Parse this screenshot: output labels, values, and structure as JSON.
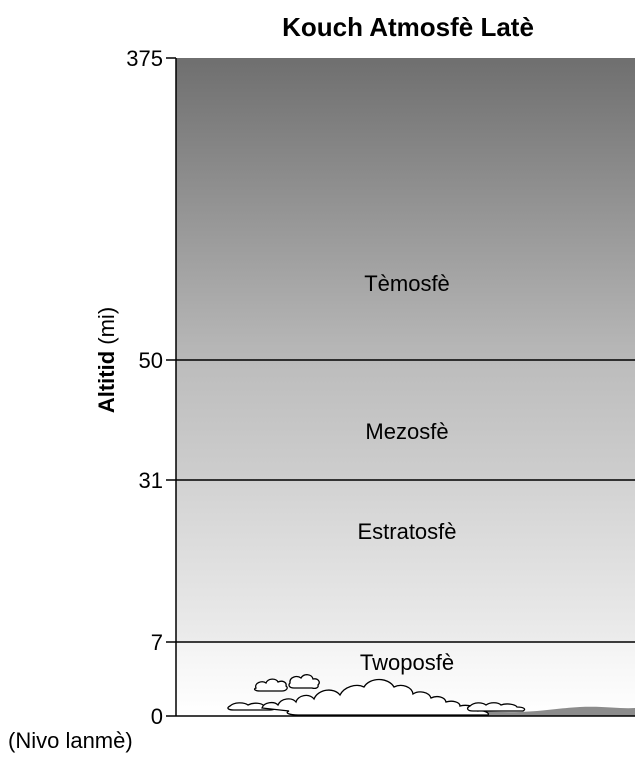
{
  "title": "Kouch Atmosfè Latè",
  "axis": {
    "label_bold": "Altitid",
    "label_unit": " (mi)",
    "ground_note": "(Nivo lanmè)"
  },
  "ticks": [
    "375",
    "50",
    "31",
    "7",
    "0"
  ],
  "layers": [
    {
      "name": "Tèmosfè"
    },
    {
      "name": "Mezosfè"
    },
    {
      "name": "Estratosfè"
    },
    {
      "name": "Twoposfè"
    }
  ],
  "colors": {
    "thermosphere_top": "#6f6f6f",
    "thermosphere_bottom": "#b9b9b9",
    "mesosphere_top": "#bcbcbc",
    "mesosphere_bottom": "#cecece",
    "stratosphere_top": "#d2d2d2",
    "stratosphere_bottom": "#ececec",
    "troposphere_top": "#f3f3f3",
    "troposphere_bottom": "#ffffff",
    "ground": "#8c8c8c"
  }
}
